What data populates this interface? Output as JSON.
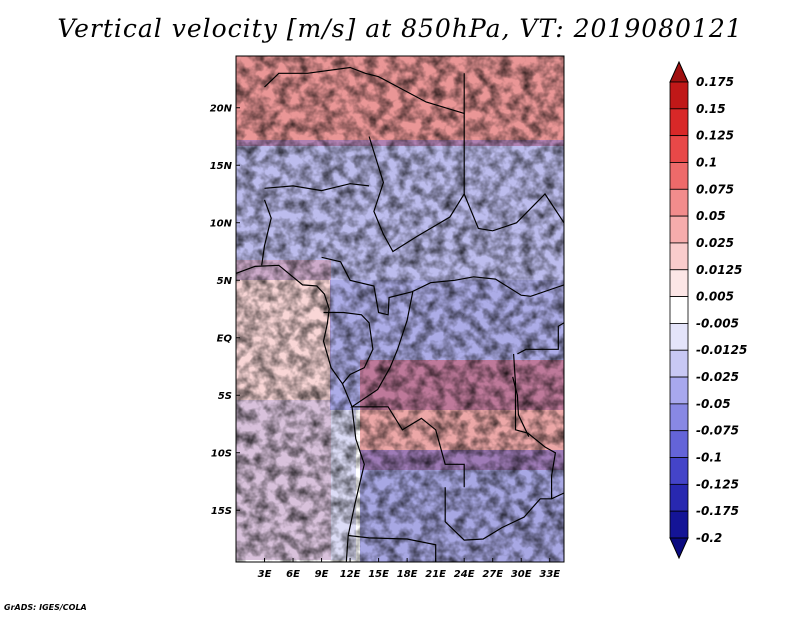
{
  "chart_data": {
    "type": "heatmap",
    "title": "Vertical velocity [m/s] at 850hPa, VT: 2019080121",
    "variable": "Vertical velocity",
    "units": "m/s",
    "level": "850hPa",
    "valid_time": "2019080121",
    "x_range": [
      0,
      34.5
    ],
    "y_range": [
      -19.5,
      24.5
    ],
    "x_ticks": [
      {
        "value": 3,
        "label": "3E"
      },
      {
        "value": 6,
        "label": "6E"
      },
      {
        "value": 9,
        "label": "9E"
      },
      {
        "value": 12,
        "label": "12E"
      },
      {
        "value": 15,
        "label": "15E"
      },
      {
        "value": 18,
        "label": "18E"
      },
      {
        "value": 21,
        "label": "21E"
      },
      {
        "value": 24,
        "label": "24E"
      },
      {
        "value": 27,
        "label": "27E"
      },
      {
        "value": 30,
        "label": "30E"
      },
      {
        "value": 33,
        "label": "33E"
      }
    ],
    "y_ticks": [
      {
        "value": 20,
        "label": "20N"
      },
      {
        "value": 15,
        "label": "15N"
      },
      {
        "value": 10,
        "label": "10N"
      },
      {
        "value": 5,
        "label": "5N"
      },
      {
        "value": 0,
        "label": "EQ"
      },
      {
        "value": -5,
        "label": "5S"
      },
      {
        "value": -10,
        "label": "10S"
      },
      {
        "value": -15,
        "label": "15S"
      }
    ],
    "colorbar": {
      "labels": [
        "0.175",
        "0.15",
        "0.125",
        "0.1",
        "0.075",
        "0.05",
        "0.025",
        "0.0125",
        "0.005",
        "-0.005",
        "-0.0125",
        "-0.025",
        "-0.05",
        "-0.075",
        "-0.1",
        "-0.125",
        "-0.175",
        "-0.2"
      ],
      "colors": [
        "#a01010",
        "#c01818",
        "#d82828",
        "#e84848",
        "#ee6a6a",
        "#f28c8c",
        "#f6acac",
        "#f9cccc",
        "#fce6e6",
        "#ffffff",
        "#e4e4fa",
        "#c8c8f4",
        "#a8a8ee",
        "#8888e4",
        "#6464d8",
        "#4444c8",
        "#2828b0",
        "#141496",
        "#0a0a80"
      ]
    }
  },
  "footer": {
    "credit": "GrADS: IGES/COLA"
  }
}
